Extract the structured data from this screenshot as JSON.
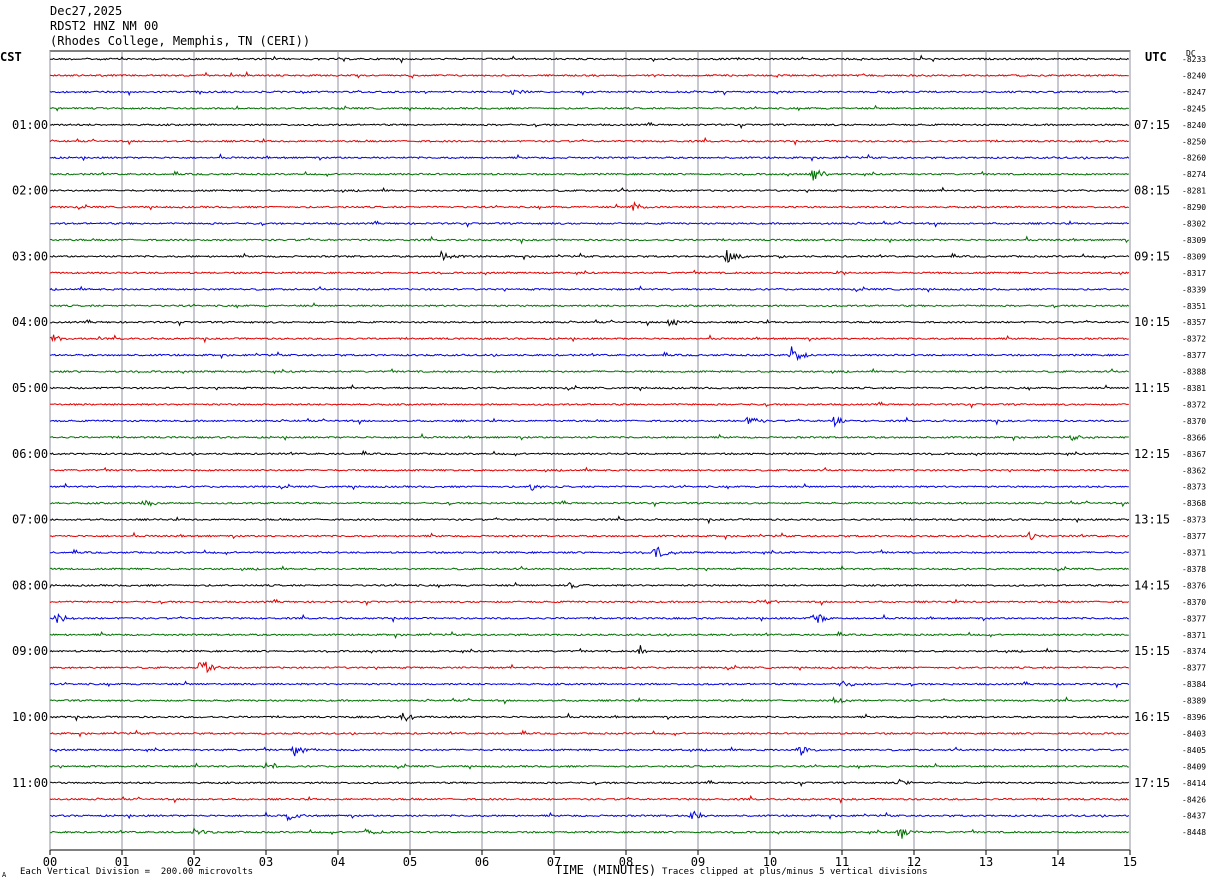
{
  "header": {
    "date": "Dec27,2025",
    "station": "RDST2 HNZ NM 00",
    "location": "(Rhodes College, Memphis, TN (CERI))"
  },
  "left_timezone": "CST",
  "right_timezone": "UTC",
  "dc_label": "DC",
  "footer": {
    "scale": "Each Vertical Division =  200.00 microvolts",
    "clip": "Traces clipped at plus/minus 5 vertical divisions",
    "corner_mark": "A"
  },
  "colors": {
    "cycle": [
      "#000000",
      "#e00000",
      "#0000e0",
      "#007000"
    ],
    "grid": "#9090a0"
  },
  "chart_data": {
    "type": "line",
    "xlabel": "TIME (MINUTES)",
    "xlim": [
      0,
      15
    ],
    "x_ticks": [
      "00",
      "01",
      "02",
      "03",
      "04",
      "05",
      "06",
      "07",
      "08",
      "09",
      "10",
      "11",
      "12",
      "13",
      "14",
      "15"
    ],
    "trace_count": 48,
    "left_hour_labels": [
      "01:00",
      "02:00",
      "03:00",
      "04:00",
      "05:00",
      "06:00",
      "07:00",
      "08:00",
      "09:00",
      "10:00",
      "11:00"
    ],
    "right_hour_labels": [
      "07:15",
      "08:15",
      "09:15",
      "10:15",
      "11:15",
      "12:15",
      "13:15",
      "14:15",
      "15:15",
      "16:15",
      "17:15"
    ],
    "dc_offsets": [
      "-8233",
      "-8240",
      "-8247",
      "-8245",
      "-8240",
      "-8250",
      "-8260",
      "-8274",
      "-8281",
      "-8290",
      "-8302",
      "-8309",
      "-8309",
      "-8317",
      "-8339",
      "-8351",
      "-8357",
      "-8372",
      "-8377",
      "-8388",
      "-8381",
      "-8372",
      "-8370",
      "-8366",
      "-8367",
      "-8362",
      "-8373",
      "-8368",
      "-8373",
      "-8377",
      "-8371",
      "-8378",
      "-8376",
      "-8370",
      "-8377",
      "-8371",
      "-8374",
      "-8377",
      "-8384",
      "-8389",
      "-8396",
      "-8403",
      "-8405",
      "-8409",
      "-8414",
      "-8426",
      "-8437",
      "-8448"
    ],
    "events": [
      {
        "trace": 2,
        "minute": 6.4,
        "amp": 4
      },
      {
        "trace": 7,
        "minute": 10.6,
        "amp": 10
      },
      {
        "trace": 9,
        "minute": 8.1,
        "amp": 6
      },
      {
        "trace": 12,
        "minute": 5.4,
        "amp": 8
      },
      {
        "trace": 12,
        "minute": 9.4,
        "amp": 7
      },
      {
        "trace": 13,
        "minute": 10.9,
        "amp": 4
      },
      {
        "trace": 16,
        "minute": 8.6,
        "amp": 6
      },
      {
        "trace": 17,
        "minute": 0.05,
        "amp": 4
      },
      {
        "trace": 18,
        "minute": 10.3,
        "amp": 9
      },
      {
        "trace": 22,
        "minute": 9.7,
        "amp": 7
      },
      {
        "trace": 22,
        "minute": 10.9,
        "amp": 5
      },
      {
        "trace": 23,
        "minute": 14.2,
        "amp": 4
      },
      {
        "trace": 26,
        "minute": 6.7,
        "amp": 4
      },
      {
        "trace": 27,
        "minute": 1.3,
        "amp": 4
      },
      {
        "trace": 29,
        "minute": 13.6,
        "amp": 5
      },
      {
        "trace": 30,
        "minute": 8.4,
        "amp": 8
      },
      {
        "trace": 32,
        "minute": 7.2,
        "amp": 4
      },
      {
        "trace": 33,
        "minute": 9.9,
        "amp": 4
      },
      {
        "trace": 34,
        "minute": 0.1,
        "amp": 7
      },
      {
        "trace": 34,
        "minute": 10.6,
        "amp": 9
      },
      {
        "trace": 36,
        "minute": 8.2,
        "amp": 6
      },
      {
        "trace": 37,
        "minute": 2.1,
        "amp": 12
      },
      {
        "trace": 38,
        "minute": 11.0,
        "amp": 5
      },
      {
        "trace": 39,
        "minute": 10.9,
        "amp": 5
      },
      {
        "trace": 40,
        "minute": 4.9,
        "amp": 6
      },
      {
        "trace": 42,
        "minute": 3.4,
        "amp": 6
      },
      {
        "trace": 42,
        "minute": 10.4,
        "amp": 8
      },
      {
        "trace": 43,
        "minute": 3.0,
        "amp": 6
      },
      {
        "trace": 44,
        "minute": 11.8,
        "amp": 4
      },
      {
        "trace": 46,
        "minute": 8.9,
        "amp": 7
      },
      {
        "trace": 46,
        "minute": 3.3,
        "amp": 6
      },
      {
        "trace": 47,
        "minute": 11.8,
        "amp": 9
      },
      {
        "trace": 47,
        "minute": 4.4,
        "amp": 5
      },
      {
        "trace": 47,
        "minute": 2.0,
        "amp": 4
      }
    ]
  }
}
